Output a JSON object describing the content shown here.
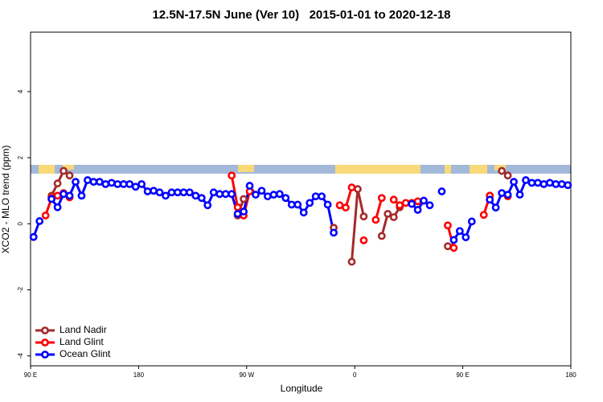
{
  "chart_data": {
    "type": "line",
    "title": "12.5N-17.5N June (Ver 10)   2015-01-01 to 2020-12-18",
    "x_label": "Longitude",
    "y_label": "XCO2 - MLO trend (ppm)",
    "xlim": [
      90,
      540
    ],
    "xticks": [
      {
        "value": 90,
        "label": "90 E"
      },
      180,
      {
        "value": 270,
        "label": "90 W"
      },
      {
        "value": 360,
        "label": "0"
      },
      {
        "value": 450,
        "label": "90 E"
      },
      {
        "value": 540,
        "label": "180"
      }
    ],
    "ylim": [
      -4.3,
      5.8
    ],
    "yticks": [
      -4,
      -2,
      0,
      2,
      4
    ],
    "legend": "bottom-left",
    "x": [
      92.5,
      97.5,
      102.5,
      107.5,
      112.5,
      117.5,
      122.5,
      127.5,
      132.5,
      137.5,
      142.5,
      147.5,
      152.5,
      157.5,
      162.5,
      167.5,
      172.5,
      177.5,
      182.5,
      187.5,
      192.5,
      197.5,
      202.5,
      207.5,
      212.5,
      217.5,
      222.5,
      227.5,
      232.5,
      237.5,
      242.5,
      247.5,
      252.5,
      257.5,
      262.5,
      267.5,
      272.5,
      277.5,
      282.5,
      287.5,
      292.5,
      297.5,
      302.5,
      307.5,
      312.5,
      317.5,
      322.5,
      327.5,
      332.5,
      337.5,
      342.5,
      347.5,
      352.5,
      357.5,
      362.5,
      367.5,
      372.5,
      377.5,
      382.5,
      387.5,
      392.5,
      397.5,
      402.5,
      407.5,
      412.5,
      417.5,
      422.5,
      427.5,
      432.5,
      437.5,
      442.5,
      447.5,
      452.5,
      457.5,
      462.5,
      467.5,
      472.5,
      477.5,
      482.5,
      487.5,
      492.5,
      497.5,
      502.5,
      507.5,
      512.5,
      517.5,
      522.5,
      527.5,
      532.5,
      537.5
    ],
    "series": [
      {
        "name": "Land Nadir",
        "color": "#a52a2a",
        "values": [
          null,
          null,
          null,
          0.85,
          1.22,
          1.6,
          1.46,
          null,
          null,
          null,
          null,
          null,
          null,
          null,
          null,
          null,
          null,
          null,
          null,
          null,
          null,
          null,
          null,
          null,
          null,
          null,
          null,
          null,
          null,
          null,
          null,
          null,
          null,
          null,
          0.25,
          0.75,
          null,
          null,
          null,
          null,
          null,
          null,
          null,
          null,
          null,
          null,
          null,
          null,
          null,
          null,
          -0.12,
          null,
          null,
          -1.15,
          1.05,
          0.22,
          null,
          null,
          -0.37,
          0.3,
          0.2,
          0.5,
          null,
          null,
          null,
          null,
          null,
          null,
          null,
          -0.68,
          null,
          null,
          null,
          null,
          null,
          null,
          0.85,
          null,
          1.6,
          1.46,
          null,
          null,
          null,
          null,
          null,
          null,
          null,
          null,
          null,
          null
        ]
      },
      {
        "name": "Land Glint",
        "color": "#ff0000",
        "values": [
          null,
          null,
          0.25,
          0.78,
          0.85,
          0.93,
          0.8,
          null,
          null,
          null,
          null,
          null,
          null,
          null,
          null,
          null,
          null,
          null,
          null,
          null,
          null,
          null,
          null,
          null,
          null,
          null,
          null,
          null,
          null,
          null,
          null,
          null,
          null,
          1.46,
          0.5,
          0.25,
          0.98,
          null,
          null,
          null,
          null,
          null,
          null,
          null,
          null,
          null,
          null,
          null,
          null,
          null,
          null,
          0.56,
          0.49,
          1.1,
          null,
          -0.5,
          null,
          0.12,
          0.78,
          null,
          0.73,
          0.56,
          0.63,
          0.63,
          0.68,
          null,
          null,
          null,
          null,
          -0.05,
          -0.73,
          null,
          null,
          null,
          null,
          0.27,
          0.85,
          null,
          null,
          0.83,
          null,
          null,
          null,
          null,
          null,
          null,
          null,
          null,
          null,
          null
        ]
      },
      {
        "name": "Ocean Glint",
        "color": "#0000ff",
        "values": [
          -0.4,
          0.08,
          null,
          0.75,
          0.5,
          0.9,
          0.85,
          1.27,
          0.85,
          1.32,
          1.27,
          1.27,
          1.2,
          1.24,
          1.2,
          1.2,
          1.2,
          1.12,
          1.2,
          0.98,
          1.0,
          0.95,
          0.85,
          0.95,
          0.95,
          0.95,
          0.95,
          0.85,
          0.78,
          0.56,
          0.95,
          0.9,
          0.9,
          0.9,
          0.3,
          0.37,
          1.15,
          0.88,
          1.0,
          0.83,
          0.88,
          0.9,
          0.78,
          0.58,
          0.58,
          0.34,
          0.63,
          0.83,
          0.83,
          0.58,
          -0.27,
          null,
          null,
          null,
          null,
          null,
          null,
          null,
          null,
          null,
          null,
          null,
          null,
          0.6,
          0.42,
          0.7,
          0.56,
          null,
          0.98,
          null,
          -0.49,
          -0.22,
          -0.41,
          0.07,
          null,
          null,
          0.73,
          0.49,
          0.93,
          0.88,
          1.27,
          0.88,
          1.32,
          1.24,
          1.24,
          1.2,
          1.24,
          1.2,
          1.2,
          1.17
        ]
      }
    ]
  }
}
